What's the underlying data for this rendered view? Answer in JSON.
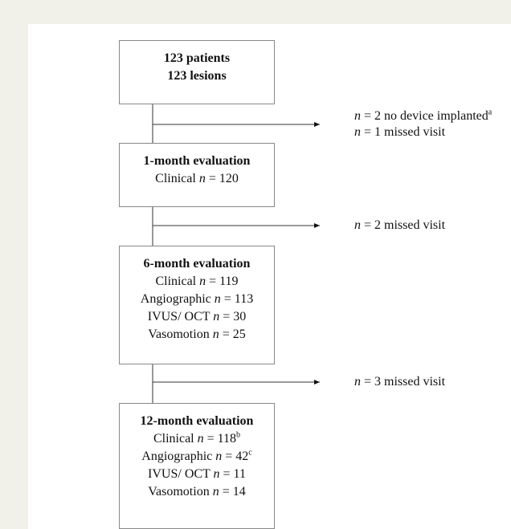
{
  "boxes": [
    {
      "title": [
        "123 patients",
        "123 lesions"
      ]
    },
    {
      "title": [
        "1-month evaluation"
      ],
      "lines": [
        {
          "label": "Clinical",
          "var": "n",
          "value": "= 120"
        }
      ]
    },
    {
      "title": [
        "6-month evaluation"
      ],
      "lines": [
        {
          "label": "Clinical",
          "var": "n",
          "value": "= 119"
        },
        {
          "label": "Angiographic",
          "var": "n",
          "value": "= 113"
        },
        {
          "label": "IVUS/ OCT",
          "var": "n",
          "value": "= 30"
        },
        {
          "label": "Vasomotion",
          "var": "n",
          "value": "= 25"
        }
      ]
    },
    {
      "title": [
        "12-month evaluation"
      ],
      "lines": [
        {
          "label": "Clinical",
          "var": "n",
          "value": "= 118",
          "sup": "b"
        },
        {
          "label": "Angiographic",
          "var": "n",
          "value": "= 42",
          "sup": "c"
        },
        {
          "label": "IVUS/ OCT",
          "var": "n",
          "value": "= 11"
        },
        {
          "label": "Vasomotion",
          "var": "n",
          "value": "= 14"
        }
      ]
    }
  ],
  "exits": [
    {
      "lines": [
        {
          "var": "n",
          "value": "= 2",
          "label": "no device implanted",
          "sup": "a"
        },
        {
          "var": "n",
          "value": "= 1",
          "label": "missed visit"
        }
      ]
    },
    {
      "lines": [
        {
          "var": "n",
          "value": "= 2",
          "label": "missed visit"
        }
      ]
    },
    {
      "lines": [
        {
          "var": "n",
          "value": "= 3",
          "label": "missed visit"
        }
      ]
    }
  ]
}
